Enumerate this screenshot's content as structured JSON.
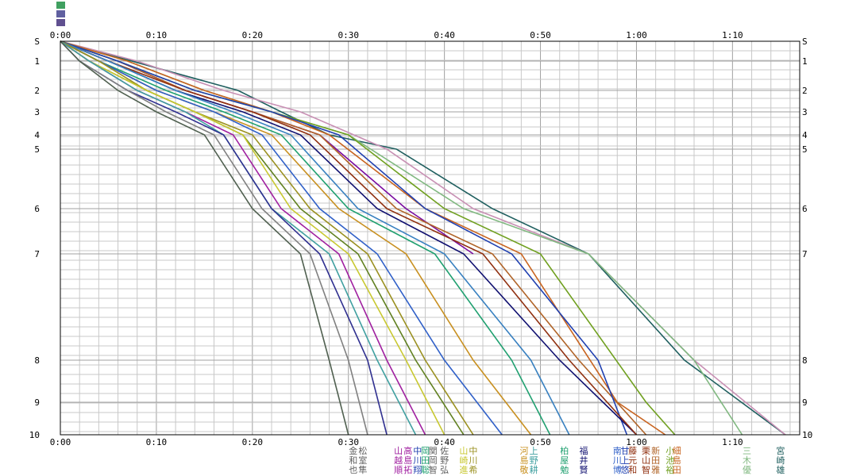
{
  "chart_data": {
    "type": "line",
    "title": "",
    "xlabel": "",
    "ylabel": "",
    "x_unit": "elapsed time (minutes)",
    "xlim": [
      0,
      77
    ],
    "x_ticks": [
      {
        "minutes": 0,
        "label": "0:00"
      },
      {
        "minutes": 10,
        "label": "0:10"
      },
      {
        "minutes": 20,
        "label": "0:20"
      },
      {
        "minutes": 30,
        "label": "0:30"
      },
      {
        "minutes": 40,
        "label": "0:40"
      },
      {
        "minutes": 50,
        "label": "0:50"
      },
      {
        "minutes": 60,
        "label": "1:00"
      },
      {
        "minutes": 70,
        "label": "1:10"
      }
    ],
    "y_ticks": [
      {
        "cp": "S",
        "label": "S"
      },
      {
        "cp": "1",
        "label": "1"
      },
      {
        "cp": "2",
        "label": "2"
      },
      {
        "cp": "3",
        "label": "3"
      },
      {
        "cp": "4",
        "label": "4"
      },
      {
        "cp": "5",
        "label": "5"
      },
      {
        "cp": "6",
        "label": "6"
      },
      {
        "cp": "7",
        "label": "7"
      },
      {
        "cp": "8",
        "label": "8"
      },
      {
        "cp": "9",
        "label": "9"
      },
      {
        "cp": "10",
        "label": "10"
      }
    ],
    "series": [
      {
        "color": "#1f5f5f",
        "x": [
          0,
          18.5,
          23,
          28,
          35,
          45,
          55,
          65,
          75.5
        ],
        "y": [
          "S",
          "2",
          "3",
          "4",
          "5",
          "6",
          "7",
          "8",
          "10"
        ]
      },
      {
        "color": "#c890b4",
        "x": [
          0,
          8,
          17,
          25,
          34,
          43,
          55,
          66,
          75.5
        ],
        "y": [
          "S",
          "1",
          "2",
          "3",
          "5",
          "6",
          "7",
          "8",
          "10"
        ]
      },
      {
        "color": "#80b880",
        "x": [
          0,
          7,
          15,
          22,
          30,
          42,
          55,
          66,
          71
        ],
        "y": [
          "S",
          "1",
          "2",
          "3",
          "4",
          "6",
          "7",
          "8",
          "10"
        ]
      },
      {
        "color": "#7a0ca0",
        "x": [
          0,
          6,
          13,
          20,
          27,
          36,
          43
        ],
        "y": [
          "S",
          "1",
          "2",
          "3",
          "4",
          "6",
          "7"
        ]
      },
      {
        "color": "#c86420",
        "x": [
          0,
          7,
          15,
          22,
          28,
          38,
          48,
          58,
          63
        ],
        "y": [
          "S",
          "1",
          "2",
          "3",
          "4",
          "6",
          "7",
          "9",
          "10"
        ]
      },
      {
        "color": "#b06428",
        "x": [
          0,
          6,
          13,
          20,
          27,
          35,
          45,
          54,
          61
        ],
        "y": [
          "S",
          "1",
          "2",
          "3",
          "4",
          "6",
          "7",
          "8",
          "10"
        ]
      },
      {
        "color": "#70a020",
        "x": [
          0,
          6,
          14,
          22,
          30,
          40,
          50,
          61,
          64
        ],
        "y": [
          "S",
          "1",
          "2",
          "3",
          "4",
          "6",
          "7",
          "9",
          "10"
        ]
      },
      {
        "color": "#2040b0",
        "x": [
          0,
          6,
          14,
          22,
          29,
          38,
          47,
          56,
          59
        ],
        "y": [
          "S",
          "1",
          "2",
          "3",
          "4",
          "6",
          "7",
          "8",
          "10"
        ]
      },
      {
        "color": "#101070",
        "x": [
          0,
          5,
          12,
          19,
          25,
          33,
          42,
          52,
          60
        ],
        "y": [
          "S",
          "1",
          "2",
          "3",
          "4",
          "6",
          "7",
          "8",
          "10"
        ]
      },
      {
        "color": "#903010",
        "x": [
          0,
          5,
          13,
          20,
          26,
          34,
          44,
          53,
          60
        ],
        "y": [
          "S",
          "1",
          "2",
          "3",
          "4",
          "6",
          "7",
          "8",
          "10"
        ]
      },
      {
        "color": "#3880c0",
        "x": [
          0,
          5,
          12,
          18,
          24,
          31,
          40,
          49,
          53
        ],
        "y": [
          "S",
          "1",
          "2",
          "3",
          "4",
          "6",
          "7",
          "8",
          "10"
        ]
      },
      {
        "color": "#20a070",
        "x": [
          0,
          4,
          11,
          17,
          23,
          30,
          39,
          47,
          51
        ],
        "y": [
          "S",
          "1",
          "2",
          "3",
          "4",
          "6",
          "7",
          "8",
          "10"
        ]
      },
      {
        "color": "#c89020",
        "x": [
          0,
          4,
          10,
          16,
          22,
          29,
          36,
          43,
          49
        ],
        "y": [
          "S",
          "1",
          "2",
          "3",
          "4",
          "6",
          "7",
          "8",
          "10"
        ]
      },
      {
        "color": "#3060c8",
        "x": [
          0,
          4,
          10,
          16,
          21,
          27,
          33,
          40,
          46
        ],
        "y": [
          "S",
          "1",
          "2",
          "3",
          "4",
          "6",
          "7",
          "8",
          "10"
        ]
      },
      {
        "color": "#9a9020",
        "x": [
          0,
          4,
          9,
          14,
          20,
          26,
          32,
          38,
          43
        ],
        "y": [
          "S",
          "1",
          "2",
          "3",
          "4",
          "6",
          "7",
          "8",
          "10"
        ]
      },
      {
        "color": "#608020",
        "x": [
          0,
          3,
          9,
          14,
          19,
          25,
          31,
          37,
          42
        ],
        "y": [
          "S",
          "1",
          "2",
          "3",
          "4",
          "6",
          "7",
          "8",
          "10"
        ]
      },
      {
        "color": "#c8c830",
        "x": [
          0,
          3,
          9,
          14,
          19,
          24,
          30,
          36,
          40
        ],
        "y": [
          "S",
          "1",
          "2",
          "3",
          "4",
          "6",
          "7",
          "8",
          "10"
        ]
      },
      {
        "color": "#a020a0",
        "x": [
          0,
          3,
          8,
          13,
          18,
          23,
          29,
          34,
          38
        ],
        "y": [
          "S",
          "1",
          "2",
          "3",
          "4",
          "6",
          "7",
          "8",
          "10"
        ]
      },
      {
        "color": "#40a0a0",
        "x": [
          0,
          3,
          8,
          13,
          17,
          22,
          28,
          33,
          37
        ],
        "y": [
          "S",
          "1",
          "2",
          "3",
          "4",
          "6",
          "7",
          "8",
          "10"
        ]
      },
      {
        "color": "#303090",
        "x": [
          0,
          2,
          7,
          12,
          17,
          22,
          27,
          32,
          34
        ],
        "y": [
          "S",
          "1",
          "2",
          "3",
          "4",
          "6",
          "7",
          "8",
          "10"
        ]
      },
      {
        "color": "#808080",
        "x": [
          0,
          2,
          7,
          11,
          16,
          21,
          26,
          30,
          32
        ],
        "y": [
          "S",
          "1",
          "2",
          "3",
          "4",
          "6",
          "7",
          "8",
          "10"
        ]
      },
      {
        "color": "#506050",
        "x": [
          0,
          2,
          6,
          10,
          15,
          20,
          25,
          28,
          30
        ],
        "y": [
          "S",
          "1",
          "2",
          "3",
          "4",
          "6",
          "7",
          "8",
          "10"
        ]
      }
    ],
    "names": [
      {
        "minutes": 30.5,
        "lines": [
          "金",
          "和",
          "也"
        ],
        "color": "#606060"
      },
      {
        "minutes": 31.5,
        "lines": [
          "松",
          "室",
          "隼"
        ],
        "color": "#606060"
      },
      {
        "minutes": 35.2,
        "lines": [
          "山",
          "越",
          "順"
        ],
        "color": "#a020a0"
      },
      {
        "minutes": 36.2,
        "lines": [
          "高",
          "島",
          "拓"
        ],
        "color": "#a020a0"
      },
      {
        "minutes": 37.2,
        "lines": [
          "中",
          "川",
          "翔"
        ],
        "color": "#2040b0"
      },
      {
        "minutes": 38.0,
        "lines": [
          "岡",
          "田",
          "聡"
        ],
        "color": "#20a070"
      },
      {
        "minutes": 38.8,
        "lines": [
          "関",
          "岡",
          "智"
        ],
        "color": "#606060"
      },
      {
        "minutes": 40.0,
        "lines": [
          "佐",
          "野",
          "弘"
        ],
        "color": "#606060"
      },
      {
        "minutes": 42.0,
        "lines": [
          "山",
          "崎",
          "進"
        ],
        "color": "#c8c830"
      },
      {
        "minutes": 43.0,
        "lines": [
          "中",
          "川",
          "希"
        ],
        "color": "#9a9020"
      },
      {
        "minutes": 48.3,
        "lines": [
          "河",
          "島",
          "敬"
        ],
        "color": "#c89020"
      },
      {
        "minutes": 49.3,
        "lines": [
          "上",
          "野",
          "耕"
        ],
        "color": "#40a0a0"
      },
      {
        "minutes": 52.5,
        "lines": [
          "柏",
          "屋",
          "勉"
        ],
        "color": "#20a070"
      },
      {
        "minutes": 54.5,
        "lines": [
          "福",
          "井",
          "賢"
        ],
        "color": "#101070"
      },
      {
        "minutes": 58.0,
        "lines": [
          "南",
          "川",
          "博"
        ],
        "color": "#3060c8"
      },
      {
        "minutes": 58.8,
        "lines": [
          "甘",
          "上",
          "悠"
        ],
        "color": "#2040b0"
      },
      {
        "minutes": 59.6,
        "lines": [
          "藤",
          "元",
          "和"
        ],
        "color": "#903010"
      },
      {
        "minutes": 61.0,
        "lines": [
          "栗",
          "山",
          "智"
        ],
        "color": "#903010"
      },
      {
        "minutes": 62.0,
        "lines": [
          "新",
          "田",
          "雅"
        ],
        "color": "#b06428"
      },
      {
        "minutes": 63.5,
        "lines": [
          "小",
          "池",
          "裕"
        ],
        "color": "#70a020"
      },
      {
        "minutes": 64.2,
        "lines": [
          "細",
          "島",
          "田"
        ],
        "color": "#c86420"
      },
      {
        "minutes": 71.5,
        "lines": [
          "三",
          "木",
          "優"
        ],
        "color": "#80b880"
      },
      {
        "minutes": 75.0,
        "lines": [
          "宮",
          "崎",
          "雄"
        ],
        "color": "#1f5f5f"
      }
    ]
  }
}
